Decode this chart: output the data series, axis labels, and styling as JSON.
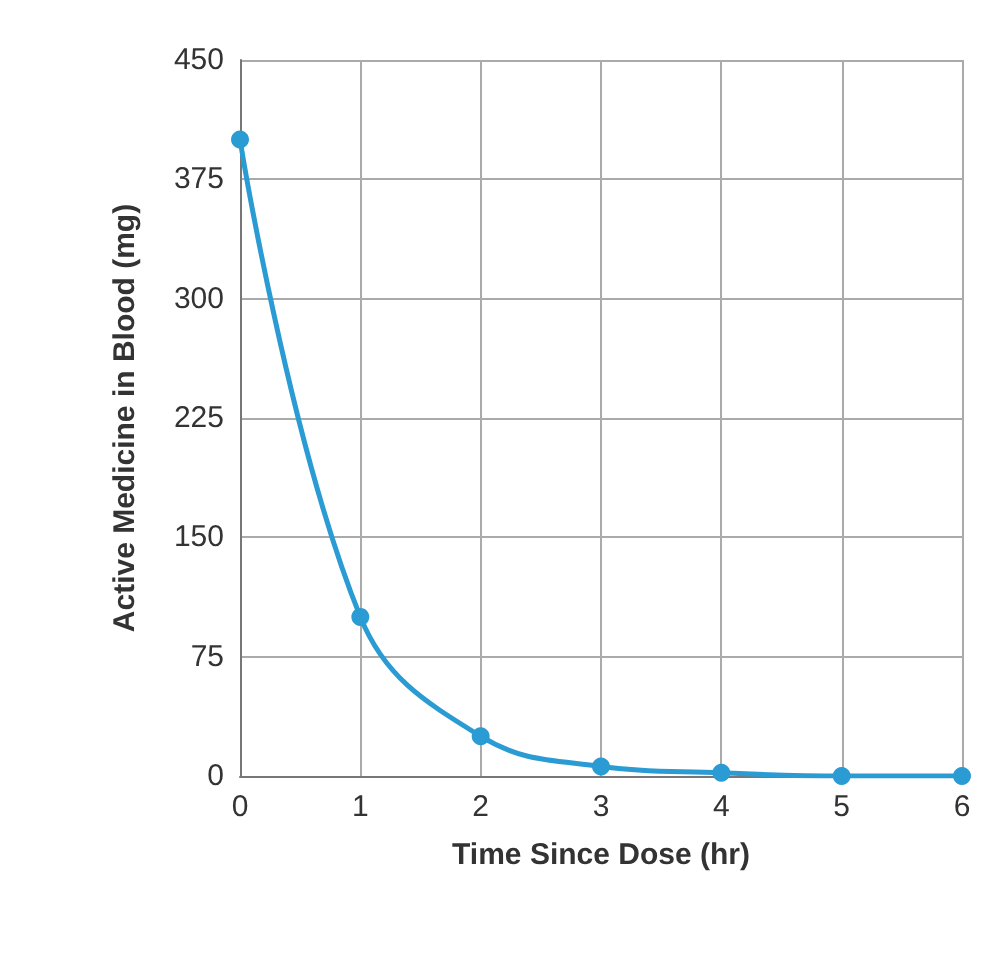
{
  "chart_data": {
    "type": "line",
    "xlabel": "Time Since Dose (hr)",
    "ylabel": "Active Medicine in Blood (mg)",
    "x": [
      0,
      1,
      2,
      3,
      4,
      5,
      6
    ],
    "series": [
      {
        "color": "#2b9bd3",
        "values": [
          400,
          100,
          25,
          6,
          2,
          0,
          0
        ]
      }
    ],
    "xlim": [
      0,
      6
    ],
    "xticks": [
      0,
      1,
      2,
      3,
      4,
      5,
      6
    ],
    "ylim": [
      0,
      450
    ],
    "yticks": [
      0,
      75,
      150,
      225,
      300,
      375,
      450
    ],
    "grid": true,
    "marker": "circle",
    "line_style": "solid"
  }
}
